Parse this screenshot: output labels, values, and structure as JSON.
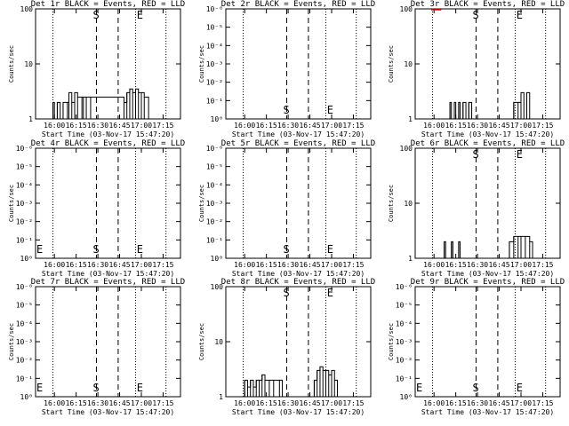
{
  "chart_data": [
    {
      "type": "line",
      "title": "Det 1r BLACK = Events, RED = LLD",
      "ylabel": "Counts/sec",
      "xlabel": "Start Time (03-Nov-17 15:47:20)",
      "x_ticks": [
        "16:00",
        "16:15",
        "16:30",
        "16:45",
        "17:00",
        "17:15"
      ],
      "y_scale": "log",
      "y_ticks": [
        "1",
        "10",
        "100"
      ],
      "ylim": [
        1,
        100
      ],
      "markers": {
        "start": "S",
        "end": "E"
      },
      "events_series": [
        {
          "x": "15:57",
          "y": 1
        },
        {
          "x": "15:59",
          "y": 2
        },
        {
          "x": "16:00",
          "y": 1
        },
        {
          "x": "16:02",
          "y": 2
        },
        {
          "x": "16:04",
          "y": 1
        },
        {
          "x": "16:06",
          "y": 2
        },
        {
          "x": "16:09",
          "y": 2
        },
        {
          "x": "16:10",
          "y": 3
        },
        {
          "x": "16:12",
          "y": 2
        },
        {
          "x": "16:14",
          "y": 3
        },
        {
          "x": "16:16",
          "y": 2.5
        },
        {
          "x": "16:19",
          "y": 2.5
        },
        {
          "x": "16:20",
          "y": 2.5
        },
        {
          "x": "16:22",
          "y": 2.5
        },
        {
          "x": "16:25",
          "y": 2.5
        },
        {
          "x": "16:48",
          "y": 2
        },
        {
          "x": "16:50",
          "y": 3
        },
        {
          "x": "16:52",
          "y": 3.5
        },
        {
          "x": "16:54",
          "y": 3
        },
        {
          "x": "16:56",
          "y": 3.5
        },
        {
          "x": "16:58",
          "y": 3
        },
        {
          "x": "17:00",
          "y": 3
        },
        {
          "x": "17:02",
          "y": 2.5
        },
        {
          "x": "17:05",
          "y": 1
        }
      ],
      "lld_series": []
    },
    {
      "type": "line",
      "title": "Det 2r BLACK = Events, RED = LLD",
      "ylabel": "Counts/sec",
      "xlabel": "Start Time (03-Nov-17 15:47:20)",
      "x_ticks": [
        "16:00",
        "16:15",
        "16:30",
        "16:45",
        "17:00",
        "17:15"
      ],
      "y_scale": "log",
      "y_ticks": [
        "10⁰",
        "10⁻¹",
        "10⁻²",
        "10⁻³",
        "10⁻⁴",
        "10⁻⁵",
        "10⁻⁶"
      ],
      "ylim": [
        1e-06,
        1
      ],
      "markers": {
        "start": "S",
        "end": "E"
      },
      "events_series": [],
      "lld_series": []
    },
    {
      "type": "line",
      "title": "Det 3r BLACK = Events, RED = LLD",
      "ylabel": "Counts/sec",
      "xlabel": "Start Time (03-Nov-17 15:47:20)",
      "x_ticks": [
        "16:00",
        "16:15",
        "16:30",
        "16:45",
        "17:00",
        "17:15"
      ],
      "y_scale": "log",
      "y_ticks": [
        "1",
        "10",
        "100"
      ],
      "ylim": [
        1,
        100
      ],
      "markers": {
        "start": "S",
        "end": "E"
      },
      "events_series": [
        {
          "x": "16:09",
          "y": 1
        },
        {
          "x": "16:11",
          "y": 2
        },
        {
          "x": "16:12",
          "y": 1
        },
        {
          "x": "16:14",
          "y": 2
        },
        {
          "x": "16:15",
          "y": 1
        },
        {
          "x": "16:17",
          "y": 2
        },
        {
          "x": "16:18",
          "y": 1
        },
        {
          "x": "16:20",
          "y": 2
        },
        {
          "x": "16:22",
          "y": 1
        },
        {
          "x": "16:24",
          "y": 2
        },
        {
          "x": "16:26",
          "y": 1
        },
        {
          "x": "16:55",
          "y": 2
        },
        {
          "x": "16:58",
          "y": 2
        },
        {
          "x": "17:00",
          "y": 3
        },
        {
          "x": "17:02",
          "y": 1
        },
        {
          "x": "17:04",
          "y": 3
        },
        {
          "x": "17:06",
          "y": 1
        }
      ],
      "lld_series": [
        {
          "x": "15:58",
          "y": 100
        },
        {
          "x": "16:05",
          "y": 100
        }
      ]
    },
    {
      "type": "line",
      "title": "Det 4r BLACK = Events, RED = LLD",
      "ylabel": "Counts/sec",
      "xlabel": "Start Time (03-Nov-17 15:47:20)",
      "x_ticks": [
        "16:00",
        "16:15",
        "16:30",
        "16:45",
        "17:00",
        "17:15"
      ],
      "y_scale": "log",
      "y_ticks": [
        "10⁰",
        "10⁻¹",
        "10⁻²",
        "10⁻³",
        "10⁻⁴",
        "10⁻⁵",
        "10⁻⁶"
      ],
      "ylim": [
        1e-06,
        1
      ],
      "markers": {
        "start": "S",
        "end": "E"
      },
      "events_series": [],
      "lld_series": []
    },
    {
      "type": "line",
      "title": "Det 5r BLACK = Events, RED = LLD",
      "ylabel": "Counts/sec",
      "xlabel": "Start Time (03-Nov-17 15:47:20)",
      "x_ticks": [
        "16:00",
        "16:15",
        "16:30",
        "16:45",
        "17:00",
        "17:15"
      ],
      "y_scale": "log",
      "y_ticks": [
        "10⁰",
        "10⁻¹",
        "10⁻²",
        "10⁻³",
        "10⁻⁴",
        "10⁻⁵",
        "10⁻⁶"
      ],
      "ylim": [
        1e-06,
        1
      ],
      "markers": {
        "start": "S",
        "end": "E"
      },
      "events_series": [],
      "lld_series": []
    },
    {
      "type": "line",
      "title": "Det 6r BLACK = Events, RED = LLD",
      "ylabel": "Counts/sec",
      "xlabel": "Start Time (03-Nov-17 15:47:20)",
      "x_ticks": [
        "16:00",
        "16:15",
        "16:30",
        "16:45",
        "17:00",
        "17:15"
      ],
      "y_scale": "log",
      "y_ticks": [
        "1",
        "10",
        "100"
      ],
      "ylim": [
        1,
        100
      ],
      "markers": {
        "start": "S",
        "end": "E"
      },
      "events_series": [
        {
          "x": "16:06",
          "y": 1
        },
        {
          "x": "16:07",
          "y": 2
        },
        {
          "x": "16:08",
          "y": 1
        },
        {
          "x": "16:12",
          "y": 2
        },
        {
          "x": "16:13",
          "y": 1
        },
        {
          "x": "16:17",
          "y": 2
        },
        {
          "x": "16:18",
          "y": 1
        },
        {
          "x": "16:50",
          "y": 1
        },
        {
          "x": "16:52",
          "y": 2
        },
        {
          "x": "16:55",
          "y": 2.5
        },
        {
          "x": "16:58",
          "y": 2.5
        },
        {
          "x": "17:00",
          "y": 2.5
        },
        {
          "x": "17:03",
          "y": 2.5
        },
        {
          "x": "17:06",
          "y": 2
        },
        {
          "x": "17:08",
          "y": 1
        }
      ],
      "lld_series": []
    },
    {
      "type": "line",
      "title": "Det 7r BLACK = Events, RED = LLD",
      "ylabel": "Counts/sec",
      "xlabel": "Start Time (03-Nov-17 15:47:20)",
      "x_ticks": [
        "16:00",
        "16:15",
        "16:30",
        "16:45",
        "17:00",
        "17:15"
      ],
      "y_scale": "log",
      "y_ticks": [
        "10⁰",
        "10⁻¹",
        "10⁻²",
        "10⁻³",
        "10⁻⁴",
        "10⁻⁵",
        "10⁻⁶"
      ],
      "ylim": [
        1e-06,
        1
      ],
      "markers": {
        "start": "S",
        "end": "E"
      },
      "events_series": [],
      "lld_series": []
    },
    {
      "type": "line",
      "title": "Det 8r BLACK = Events, RED = LLD",
      "ylabel": "Counts/sec",
      "xlabel": "Start Time (03-Nov-17 15:47:20)",
      "x_ticks": [
        "16:00",
        "16:15",
        "16:30",
        "16:45",
        "17:00",
        "17:15"
      ],
      "y_scale": "log",
      "y_ticks": [
        "1",
        "10",
        "100"
      ],
      "ylim": [
        1,
        100
      ],
      "markers": {
        "start": "S",
        "end": "E"
      },
      "events_series": [
        {
          "x": "15:58",
          "y": 1
        },
        {
          "x": "16:00",
          "y": 2
        },
        {
          "x": "16:02",
          "y": 1.5
        },
        {
          "x": "16:04",
          "y": 2
        },
        {
          "x": "16:06",
          "y": 1.5
        },
        {
          "x": "16:08",
          "y": 2
        },
        {
          "x": "16:10",
          "y": 2
        },
        {
          "x": "16:12",
          "y": 2.5
        },
        {
          "x": "16:14",
          "y": 2
        },
        {
          "x": "16:17",
          "y": 2
        },
        {
          "x": "16:20",
          "y": 2
        },
        {
          "x": "16:24",
          "y": 2
        },
        {
          "x": "16:26",
          "y": 1
        },
        {
          "x": "16:48",
          "y": 2
        },
        {
          "x": "16:50",
          "y": 3
        },
        {
          "x": "16:52",
          "y": 3.5
        },
        {
          "x": "16:54",
          "y": 3
        },
        {
          "x": "16:56",
          "y": 3
        },
        {
          "x": "16:58",
          "y": 2.5
        },
        {
          "x": "17:00",
          "y": 3
        },
        {
          "x": "17:02",
          "y": 2
        },
        {
          "x": "17:04",
          "y": 1
        }
      ],
      "lld_series": []
    },
    {
      "type": "line",
      "title": "Det 9r BLACK = Events, RED = LLD",
      "ylabel": "Counts/sec",
      "xlabel": "Start Time (03-Nov-17 15:47:20)",
      "x_ticks": [
        "16:00",
        "16:15",
        "16:30",
        "16:45",
        "17:00",
        "17:15"
      ],
      "y_scale": "log",
      "y_ticks": [
        "10⁰",
        "10⁻¹",
        "10⁻²",
        "10⁻³",
        "10⁻⁴",
        "10⁻⁵",
        "10⁻⁶"
      ],
      "ylim": [
        1e-06,
        1
      ],
      "markers": {
        "start": "S",
        "end": "E"
      },
      "events_series": [],
      "lld_series": []
    }
  ],
  "figure": {
    "x_range": [
      "15:47",
      "17:27"
    ],
    "dotted_lines": [
      "15:59",
      "16:56",
      "17:17"
    ],
    "dashed_lines": [
      "16:29",
      "16:44"
    ],
    "start_marker_at": "16:29",
    "end_marker_at": "16:58",
    "events_color": "#000000",
    "lld_color": "#ff0000"
  }
}
